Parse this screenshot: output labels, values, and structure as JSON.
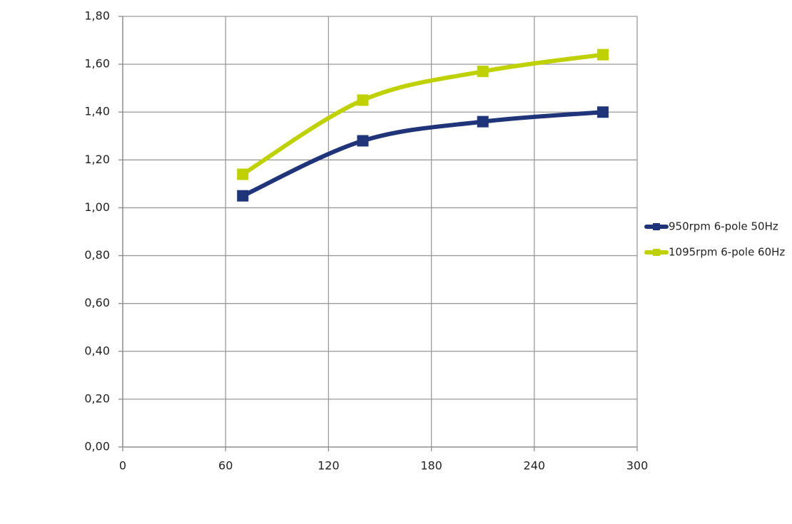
{
  "chart_data": {
    "type": "line",
    "x": [
      70,
      140,
      210,
      280
    ],
    "series": [
      {
        "name": "950rpm 6-pole 50Hz",
        "color": "#1f3479",
        "values": [
          1.05,
          1.28,
          1.36,
          1.4
        ]
      },
      {
        "name": "1095rpm 6-pole 60Hz",
        "color": "#bfd100",
        "values": [
          1.14,
          1.45,
          1.57,
          1.64
        ]
      }
    ],
    "xlim": [
      0,
      300
    ],
    "xticks": [
      0,
      60,
      120,
      180,
      240,
      300
    ],
    "ylim": [
      0,
      1.8
    ],
    "yticks": [
      {
        "value": 0,
        "label": "0,00"
      },
      {
        "value": 0.2,
        "label": "0,20"
      },
      {
        "value": 0.4,
        "label": "0,40"
      },
      {
        "value": 0.6,
        "label": "0,60"
      },
      {
        "value": 0.8,
        "label": "0,80"
      },
      {
        "value": 1.0,
        "label": "1,00"
      },
      {
        "value": 1.2,
        "label": "1,20"
      },
      {
        "value": 1.4,
        "label": "1,40"
      },
      {
        "value": 1.6,
        "label": "1,60"
      },
      {
        "value": 1.8,
        "label": "1,80"
      }
    ],
    "grid": true,
    "smooth": true,
    "marker": "square",
    "legend": "right"
  }
}
